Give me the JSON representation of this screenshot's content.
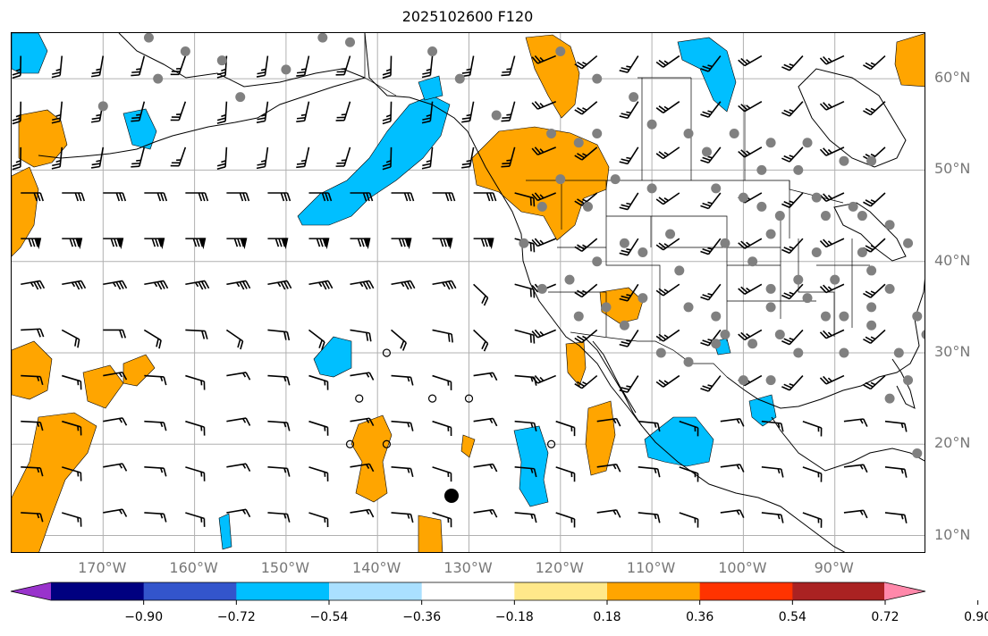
{
  "title": "2025102600 F120",
  "lat_labels": [
    {
      "lat": 60,
      "text": "60°N"
    },
    {
      "lat": 50,
      "text": "50°N"
    },
    {
      "lat": 40,
      "text": "40°N"
    },
    {
      "lat": 30,
      "text": "30°N"
    },
    {
      "lat": 20,
      "text": "20°N"
    },
    {
      "lat": 10,
      "text": "10°N"
    }
  ],
  "lon_labels": [
    {
      "lon": -170,
      "text": "170°W"
    },
    {
      "lon": -160,
      "text": "160°W"
    },
    {
      "lon": -150,
      "text": "150°W"
    },
    {
      "lon": -140,
      "text": "140°W"
    },
    {
      "lon": -130,
      "text": "130°W"
    },
    {
      "lon": -120,
      "text": "120°W"
    },
    {
      "lon": -110,
      "text": "110°W"
    },
    {
      "lon": -100,
      "text": "100°W"
    },
    {
      "lon": -90,
      "text": "90°W"
    }
  ],
  "extent": {
    "lon_min": -180,
    "lon_max": -80,
    "lat_min": 8,
    "lat_max": 65
  },
  "colorbar": {
    "colors": [
      "#9933cc",
      "#000080",
      "#3355cc",
      "#00bfff",
      "#aae0ff",
      "#ffffff",
      "#ffe88a",
      "#ffa500",
      "#ff3300",
      "#aa2222",
      "#ff88aa"
    ],
    "tick_labels": [
      "−0.90",
      "−0.72",
      "−0.54",
      "−0.36",
      "−0.18",
      "0.18",
      "0.36",
      "0.54",
      "0.72",
      "0.90"
    ]
  },
  "colors": {
    "positive": "#ffa500",
    "negative": "#00bfff",
    "land": "#000000",
    "grid": "#b0b0b0",
    "station": "#808080"
  }
}
